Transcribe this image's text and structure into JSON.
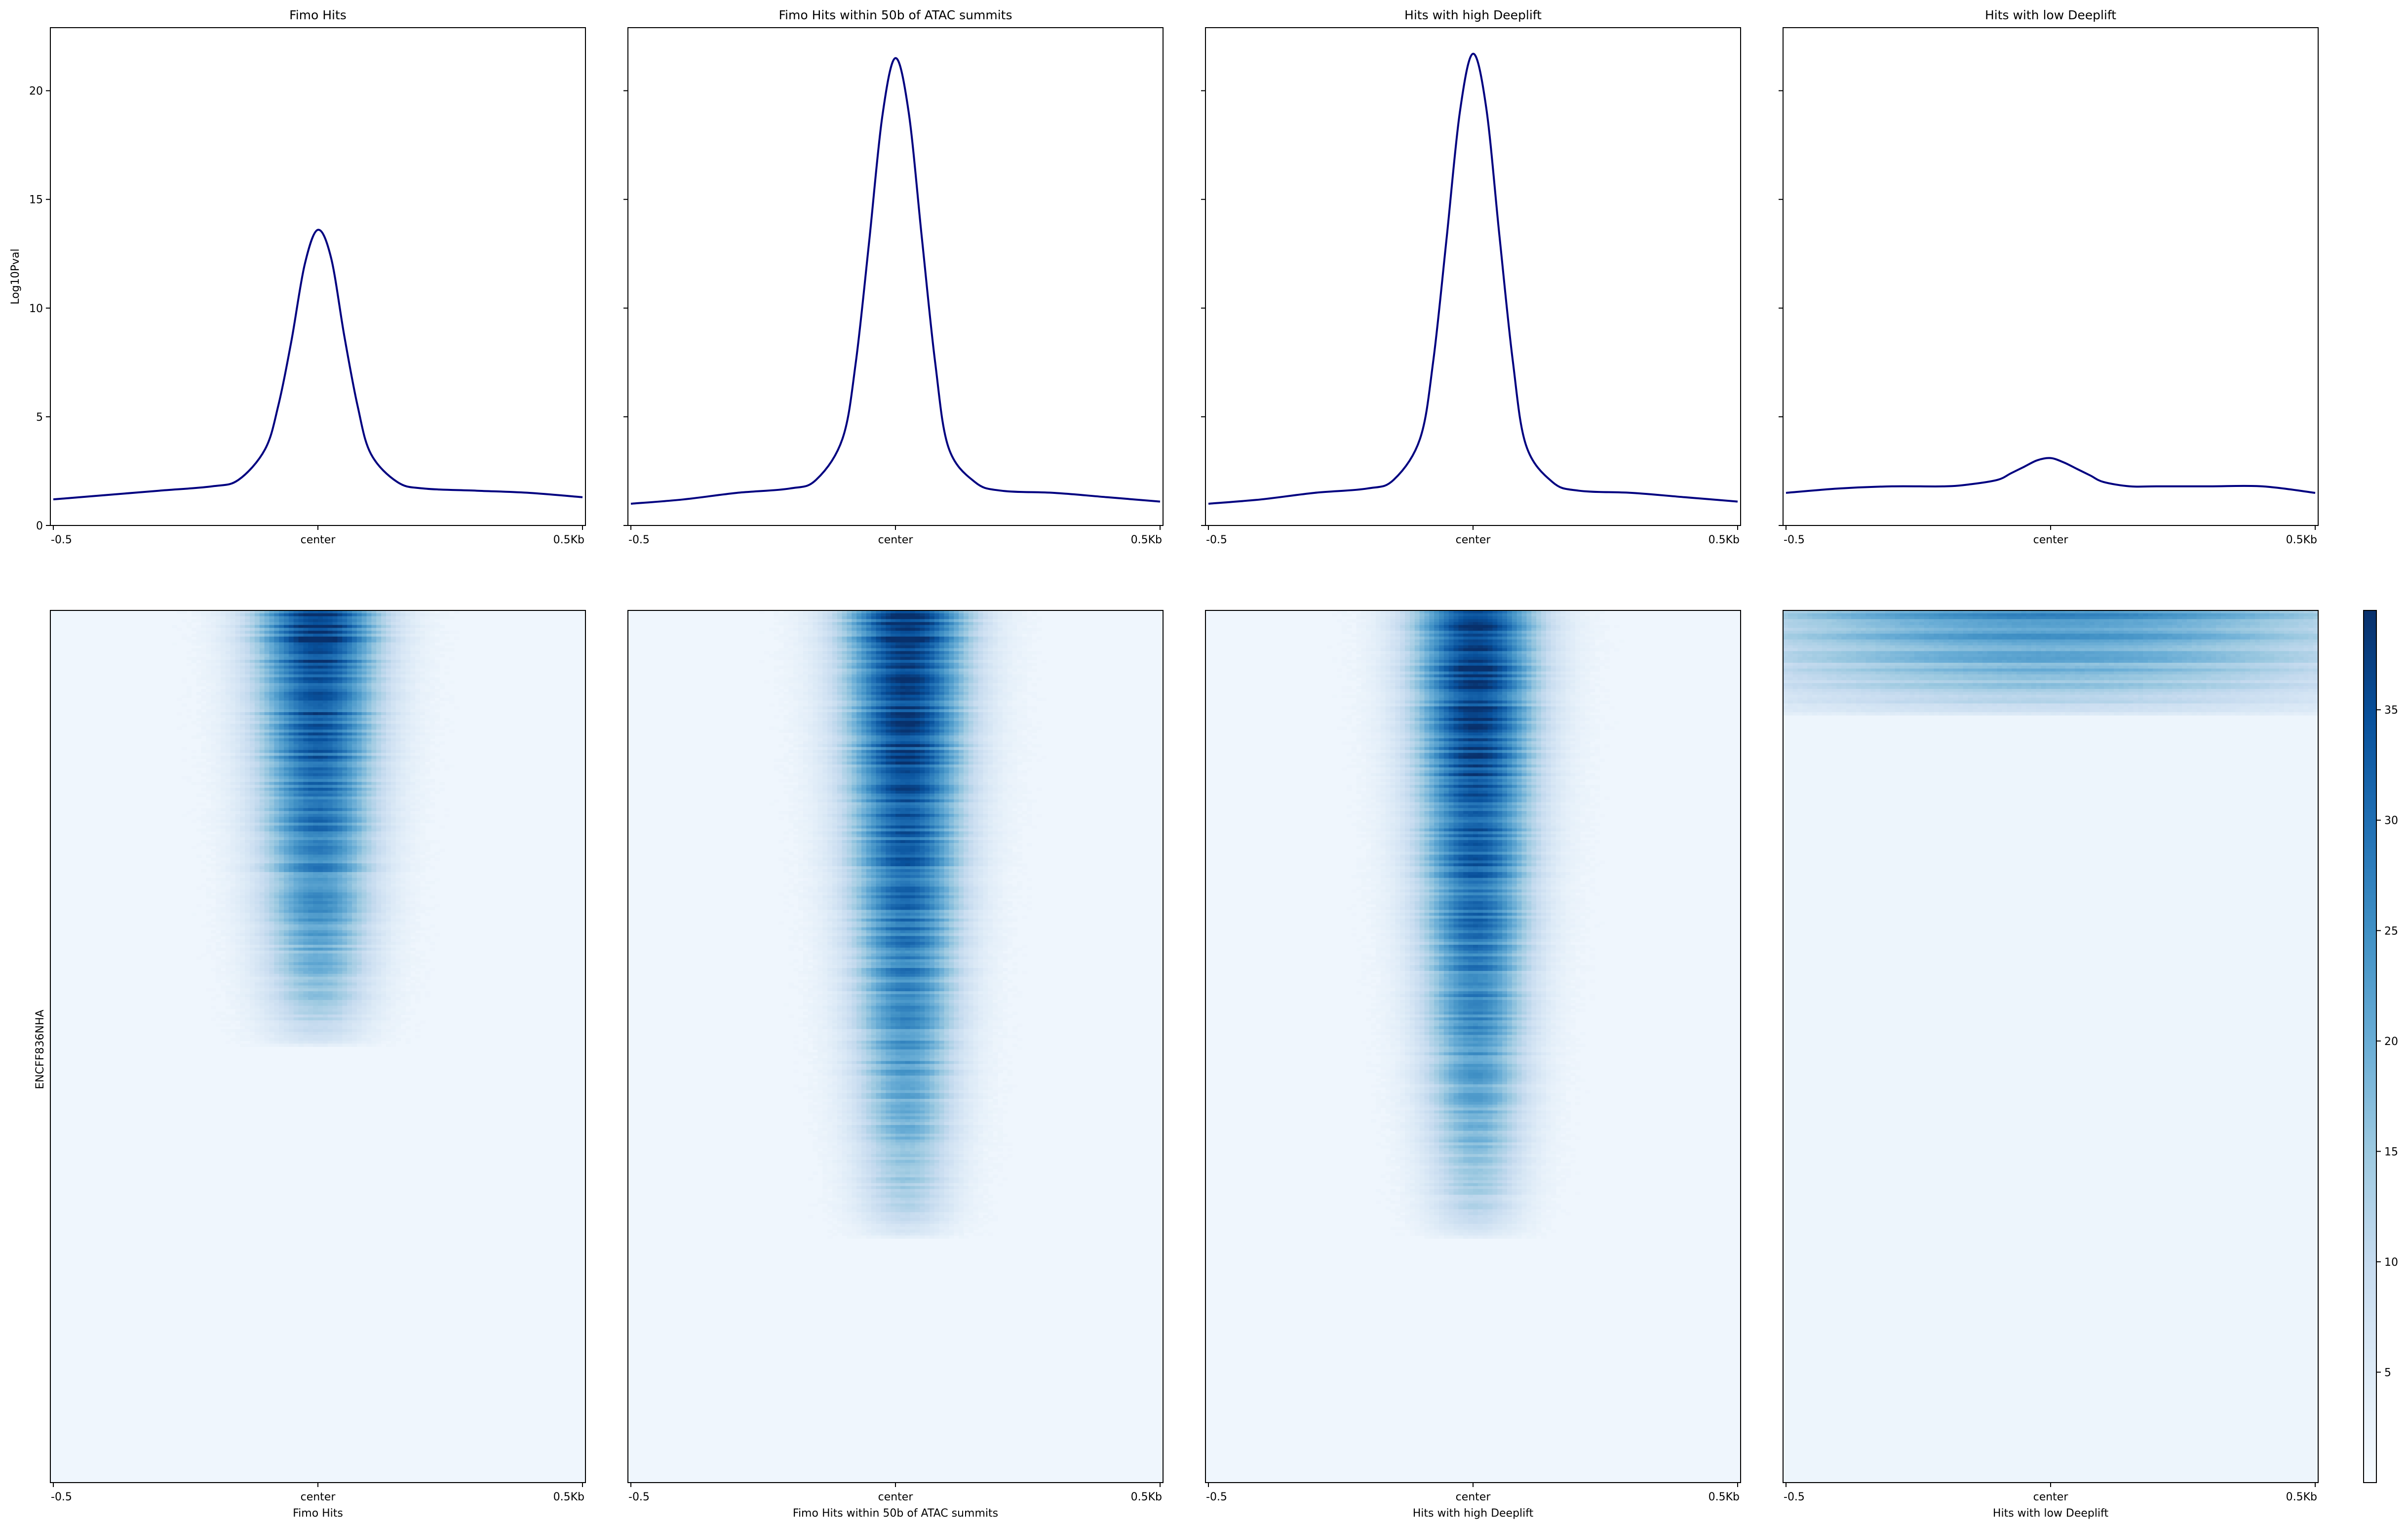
{
  "figure": {
    "row_label": "ENCFF836NHA",
    "colormap": "Blues"
  },
  "chart_data": [
    {
      "type": "line",
      "panel": "profile",
      "title": "Fimo Hits",
      "ylabel": "Log10Pval",
      "ylim": [
        0,
        22.9
      ],
      "yticks": [
        0,
        5,
        10,
        15,
        20
      ],
      "xticks": [
        "-0.5",
        "center",
        "0.5Kb"
      ],
      "x": [
        -500,
        -400,
        -300,
        -200,
        -150,
        -100,
        -75,
        -50,
        -25,
        0,
        25,
        50,
        75,
        100,
        150,
        200,
        300,
        400,
        500
      ],
      "series": [
        {
          "color": "#000080",
          "values": [
            1.2,
            1.4,
            1.6,
            1.8,
            2.1,
            3.5,
            5.5,
            8.5,
            12.0,
            13.6,
            12.3,
            8.7,
            5.5,
            3.3,
            2.0,
            1.7,
            1.6,
            1.5,
            1.3
          ]
        }
      ],
      "grid": false
    },
    {
      "type": "line",
      "panel": "profile",
      "title": "Fimo Hits within 50b of ATAC summits",
      "ylim": [
        0,
        22.9
      ],
      "yticks": [
        0,
        5,
        10,
        15,
        20
      ],
      "xticks": [
        "-0.5",
        "center",
        "0.5Kb"
      ],
      "x": [
        -500,
        -400,
        -300,
        -200,
        -150,
        -100,
        -75,
        -50,
        -25,
        0,
        25,
        50,
        75,
        100,
        150,
        200,
        300,
        400,
        500
      ],
      "series": [
        {
          "color": "#000080",
          "values": [
            1.0,
            1.2,
            1.5,
            1.7,
            2.1,
            4.0,
            7.5,
            13.0,
            18.8,
            21.5,
            19.0,
            13.2,
            7.5,
            3.6,
            2.0,
            1.6,
            1.5,
            1.3,
            1.1
          ]
        }
      ],
      "grid": false
    },
    {
      "type": "line",
      "panel": "profile",
      "title": "Hits with high Deeplift",
      "ylim": [
        0,
        22.9
      ],
      "yticks": [
        0,
        5,
        10,
        15,
        20
      ],
      "xticks": [
        "-0.5",
        "center",
        "0.5Kb"
      ],
      "x": [
        -500,
        -400,
        -300,
        -200,
        -150,
        -100,
        -75,
        -50,
        -25,
        0,
        25,
        50,
        75,
        100,
        150,
        200,
        300,
        400,
        500
      ],
      "series": [
        {
          "color": "#000080",
          "values": [
            1.0,
            1.2,
            1.5,
            1.7,
            2.1,
            4.0,
            7.6,
            13.2,
            19.0,
            21.7,
            19.2,
            13.3,
            7.6,
            3.7,
            2.0,
            1.6,
            1.5,
            1.3,
            1.1
          ]
        }
      ],
      "grid": false
    },
    {
      "type": "line",
      "panel": "profile",
      "title": "Hits with low Deeplift",
      "ylim": [
        0,
        22.9
      ],
      "yticks": [
        0,
        5,
        10,
        15,
        20
      ],
      "xticks": [
        "-0.5",
        "center",
        "0.5Kb"
      ],
      "x": [
        -500,
        -400,
        -300,
        -200,
        -150,
        -100,
        -75,
        -50,
        -25,
        0,
        25,
        50,
        75,
        100,
        150,
        200,
        300,
        400,
        500
      ],
      "series": [
        {
          "color": "#000080",
          "values": [
            1.5,
            1.7,
            1.8,
            1.8,
            1.9,
            2.1,
            2.4,
            2.7,
            3.0,
            3.1,
            2.9,
            2.6,
            2.3,
            2.0,
            1.8,
            1.8,
            1.8,
            1.8,
            1.5
          ]
        }
      ],
      "grid": false
    },
    {
      "type": "heatmap",
      "panel": "heatmap",
      "xlabel": "Fimo Hits",
      "xticks": [
        "-0.5",
        "center",
        "0.5Kb"
      ],
      "peak_value": 38,
      "peak_center": 0,
      "signal_extent_fraction": 0.5,
      "background_value": 1.5
    },
    {
      "type": "heatmap",
      "panel": "heatmap",
      "xlabel": "Fimo Hits within 50b of ATAC summits",
      "xticks": [
        "-0.5",
        "center",
        "0.5Kb"
      ],
      "peak_value": 39,
      "peak_center": 20,
      "signal_extent_fraction": 0.72,
      "background_value": 1.5
    },
    {
      "type": "heatmap",
      "panel": "heatmap",
      "xlabel": "Hits with high Deeplift",
      "xticks": [
        "-0.5",
        "center",
        "0.5Kb"
      ],
      "peak_value": 39,
      "peak_center": 5,
      "signal_extent_fraction": 0.72,
      "background_value": 1.5
    },
    {
      "type": "heatmap",
      "panel": "heatmap",
      "xlabel": "Hits with low Deeplift",
      "xticks": [
        "-0.5",
        "center",
        "0.5Kb"
      ],
      "peak_value": 24,
      "peak_center": 0,
      "signal_extent_fraction": 0.12,
      "background_value": 2.0
    }
  ],
  "colorbar": {
    "ticks": [
      5,
      10,
      15,
      20,
      25,
      30,
      35
    ],
    "range": [
      0,
      39.5
    ]
  }
}
